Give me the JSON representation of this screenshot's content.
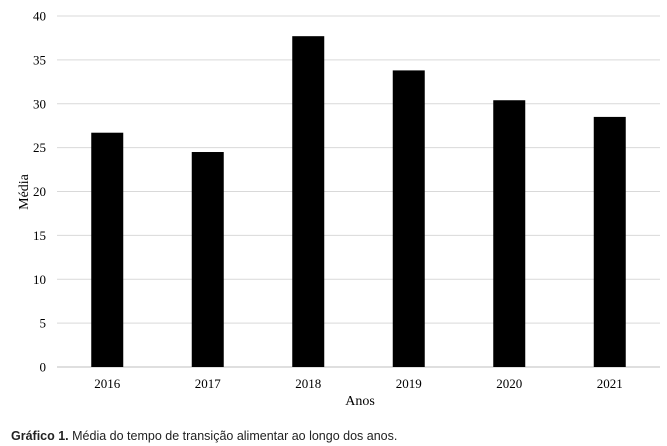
{
  "chart_data": {
    "type": "bar",
    "categories": [
      "2016",
      "2017",
      "2018",
      "2019",
      "2020",
      "2021"
    ],
    "values": [
      26.7,
      24.5,
      37.7,
      33.8,
      30.4,
      28.5
    ],
    "xlabel": "Anos",
    "ylabel": "Média",
    "ylim": [
      0,
      40
    ],
    "yticks": [
      0,
      5,
      10,
      15,
      20,
      25,
      30,
      35,
      40
    ],
    "grid": true,
    "legend": "none",
    "bar_color": "#000000",
    "grid_color": "#d9d9d9"
  },
  "caption": {
    "label": "Gráfico 1.",
    "text": " Média do tempo de transição alimentar ao longo dos anos."
  }
}
